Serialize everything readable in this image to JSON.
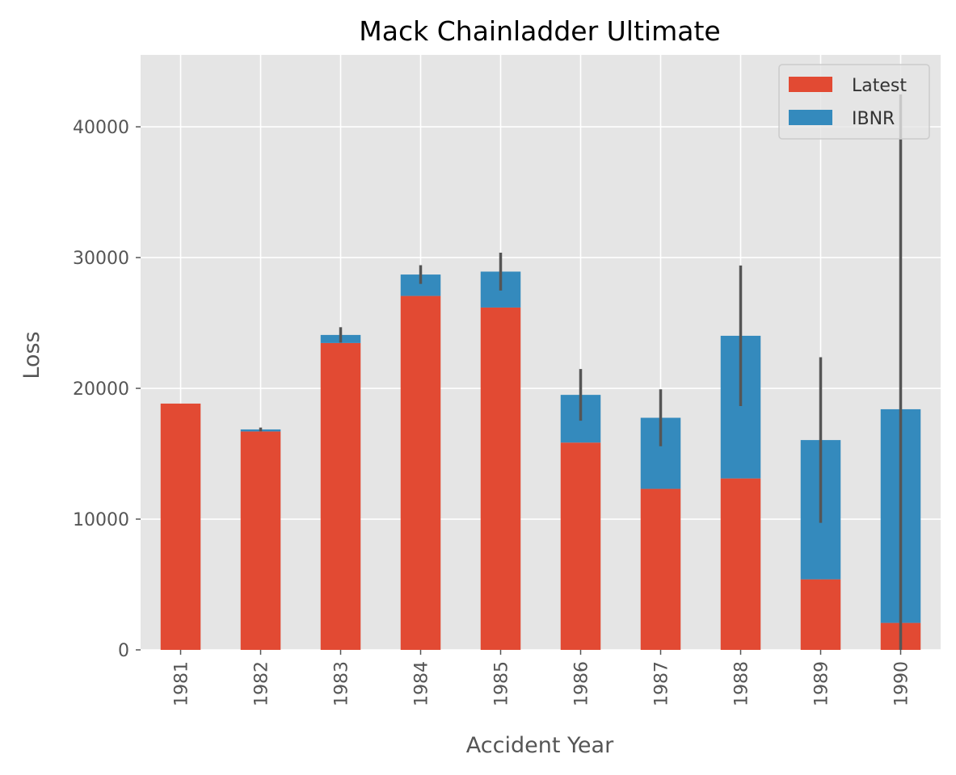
{
  "chart_data": {
    "type": "bar",
    "stacked": true,
    "title": "Mack Chainladder Ultimate",
    "xlabel": "Accident Year",
    "ylabel": "Loss",
    "categories": [
      "1981",
      "1982",
      "1983",
      "1984",
      "1985",
      "1986",
      "1987",
      "1988",
      "1989",
      "1990"
    ],
    "series": [
      {
        "name": "Latest",
        "color": "#E24A33",
        "values": [
          18834,
          16704,
          23466,
          27067,
          26180,
          15852,
          12314,
          13112,
          5395,
          2063
        ]
      },
      {
        "name": "IBNR",
        "color": "#348ABD",
        "values": [
          0,
          154,
          617,
          1636,
          2747,
          3649,
          5435,
          10907,
          10650,
          16339
        ]
      }
    ],
    "error_bars": {
      "color": "#555555",
      "center": [
        18834,
        16858,
        24083,
        28703,
        28927,
        19501,
        17749,
        24019,
        16045,
        18402
      ],
      "half_width": [
        0,
        143,
        592,
        715,
        1447,
        1976,
        2176,
        5377,
        6331,
        24070
      ]
    },
    "ylim": [
      0,
      45500
    ],
    "yticks": [
      0,
      10000,
      20000,
      30000,
      40000
    ],
    "grid": true,
    "legend_position": "top-right"
  }
}
